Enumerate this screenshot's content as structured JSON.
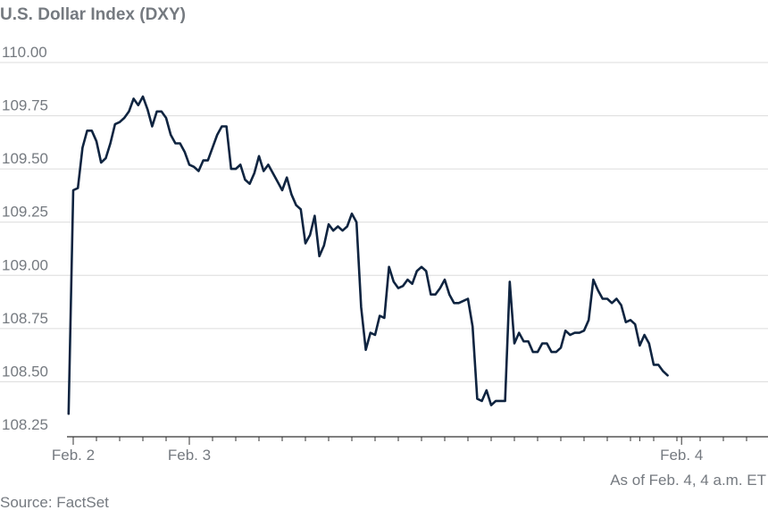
{
  "colors": {
    "line": "#0f2440",
    "text": "#757a80",
    "grid": "#dcdcdc",
    "axis": "#333333"
  },
  "chart_data": {
    "type": "line",
    "title": "U.S. Dollar Index (DXY)",
    "note": "As of Feb. 4, 4 a.m. ET",
    "source": "Source: FactSet",
    "ylim": [
      108.25,
      110.0
    ],
    "xlim": [
      0,
      163
    ],
    "y_ticks": [
      {
        "value": 110.0,
        "label": "110.00"
      },
      {
        "value": 109.75,
        "label": "109.75"
      },
      {
        "value": 109.5,
        "label": "109.50"
      },
      {
        "value": 109.25,
        "label": "109.25"
      },
      {
        "value": 109.0,
        "label": "109.00"
      },
      {
        "value": 108.75,
        "label": "108.75"
      },
      {
        "value": 108.5,
        "label": "108.50"
      },
      {
        "value": 108.25,
        "label": "108.25"
      }
    ],
    "x_labels": [
      {
        "x": 0,
        "label": "Feb. 2"
      },
      {
        "x": 25,
        "label": "Feb. 3"
      },
      {
        "x": 131,
        "label": "Feb. 4"
      }
    ],
    "x_minor_ticks": [
      0,
      5,
      10,
      15,
      20,
      25,
      30,
      35,
      40,
      45,
      50,
      55,
      60,
      65,
      70,
      75,
      80,
      85,
      90,
      95,
      100,
      105,
      110,
      115,
      120,
      122,
      125,
      130,
      135,
      140,
      145,
      150,
      155,
      160
    ],
    "series": [
      {
        "values": [
          [
            -1,
            108.35
          ],
          [
            0,
            109.4
          ],
          [
            1,
            109.41
          ],
          [
            2,
            109.6
          ],
          [
            3,
            109.68
          ],
          [
            4,
            109.68
          ],
          [
            5,
            109.63
          ],
          [
            6,
            109.53
          ],
          [
            7,
            109.55
          ],
          [
            8,
            109.62
          ],
          [
            9,
            109.71
          ],
          [
            10,
            109.72
          ],
          [
            11,
            109.74
          ],
          [
            12,
            109.77
          ],
          [
            13,
            109.83
          ],
          [
            14,
            109.8
          ],
          [
            15,
            109.84
          ],
          [
            16,
            109.78
          ],
          [
            17,
            109.7
          ],
          [
            18,
            109.77
          ],
          [
            19,
            109.77
          ],
          [
            20,
            109.74
          ],
          [
            21,
            109.66
          ],
          [
            22,
            109.62
          ],
          [
            23,
            109.62
          ],
          [
            24,
            109.58
          ],
          [
            25,
            109.52
          ],
          [
            26,
            109.51
          ],
          [
            27,
            109.49
          ],
          [
            28,
            109.54
          ],
          [
            29,
            109.54
          ],
          [
            30,
            109.6
          ],
          [
            31,
            109.66
          ],
          [
            32,
            109.7
          ],
          [
            33,
            109.7
          ],
          [
            34,
            109.5
          ],
          [
            35,
            109.5
          ],
          [
            36,
            109.52
          ],
          [
            37,
            109.45
          ],
          [
            38,
            109.43
          ],
          [
            39,
            109.48
          ],
          [
            40,
            109.56
          ],
          [
            41,
            109.49
          ],
          [
            42,
            109.52
          ],
          [
            43,
            109.48
          ],
          [
            44,
            109.44
          ],
          [
            45,
            109.4
          ],
          [
            46,
            109.46
          ],
          [
            47,
            109.38
          ],
          [
            48,
            109.33
          ],
          [
            49,
            109.31
          ],
          [
            50,
            109.15
          ],
          [
            51,
            109.19
          ],
          [
            52,
            109.28
          ],
          [
            53,
            109.09
          ],
          [
            54,
            109.14
          ],
          [
            55,
            109.24
          ],
          [
            56,
            109.21
          ],
          [
            57,
            109.23
          ],
          [
            58,
            109.21
          ],
          [
            59,
            109.23
          ],
          [
            60,
            109.29
          ],
          [
            61,
            109.25
          ],
          [
            62,
            108.85
          ],
          [
            63,
            108.65
          ],
          [
            64,
            108.73
          ],
          [
            65,
            108.72
          ],
          [
            66,
            108.81
          ],
          [
            67,
            108.8
          ],
          [
            68,
            109.04
          ],
          [
            69,
            108.97
          ],
          [
            70,
            108.94
          ],
          [
            71,
            108.95
          ],
          [
            72,
            108.98
          ],
          [
            73,
            108.96
          ],
          [
            74,
            109.02
          ],
          [
            75,
            109.04
          ],
          [
            76,
            109.02
          ],
          [
            77,
            108.91
          ],
          [
            78,
            108.91
          ],
          [
            79,
            108.94
          ],
          [
            80,
            108.98
          ],
          [
            81,
            108.91
          ],
          [
            82,
            108.87
          ],
          [
            83,
            108.87
          ],
          [
            84,
            108.88
          ],
          [
            85,
            108.89
          ],
          [
            86,
            108.76
          ],
          [
            87,
            108.42
          ],
          [
            88,
            108.41
          ],
          [
            89,
            108.46
          ],
          [
            90,
            108.39
          ],
          [
            91,
            108.41
          ],
          [
            92,
            108.41
          ],
          [
            93,
            108.41
          ],
          [
            94,
            108.97
          ],
          [
            95,
            108.68
          ],
          [
            96,
            108.73
          ],
          [
            97,
            108.69
          ],
          [
            98,
            108.69
          ],
          [
            99,
            108.64
          ],
          [
            100,
            108.64
          ],
          [
            101,
            108.68
          ],
          [
            102,
            108.68
          ],
          [
            103,
            108.64
          ],
          [
            104,
            108.64
          ],
          [
            105,
            108.66
          ],
          [
            106,
            108.74
          ],
          [
            107,
            108.72
          ],
          [
            108,
            108.73
          ],
          [
            109,
            108.73
          ],
          [
            110,
            108.74
          ],
          [
            111,
            108.79
          ],
          [
            112,
            108.98
          ],
          [
            113,
            108.93
          ],
          [
            114,
            108.89
          ],
          [
            115,
            108.89
          ],
          [
            116,
            108.87
          ],
          [
            117,
            108.89
          ],
          [
            118,
            108.86
          ],
          [
            119,
            108.78
          ],
          [
            120,
            108.79
          ],
          [
            121,
            108.77
          ],
          [
            122,
            108.67
          ],
          [
            123,
            108.72
          ],
          [
            124,
            108.68
          ],
          [
            125,
            108.58
          ],
          [
            126,
            108.58
          ],
          [
            127,
            108.55
          ],
          [
            128,
            108.53
          ]
        ]
      }
    ]
  }
}
